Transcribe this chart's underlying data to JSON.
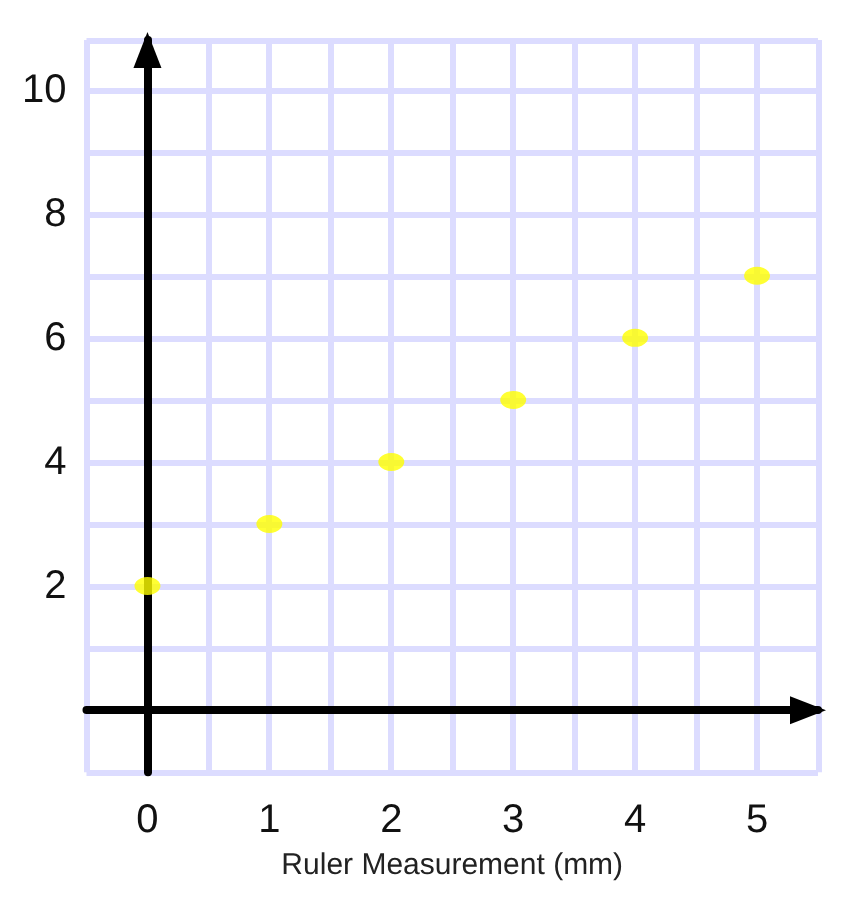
{
  "chart_data": {
    "type": "scatter",
    "xlabel": "Ruler Measurement (mm)",
    "x": [
      0,
      1,
      2,
      3,
      4,
      5
    ],
    "series": [
      {
        "color": "#ffff00",
        "values": [
          2,
          3,
          4,
          5,
          6,
          7
        ]
      }
    ],
    "xlim": [
      -0.5,
      5.5
    ],
    "xticks": [
      0,
      1,
      2,
      3,
      4,
      5
    ],
    "ylim": [
      -1,
      10.8
    ],
    "yticks": [
      2,
      4,
      6,
      8,
      10
    ],
    "grid": true,
    "marker": "circle"
  }
}
